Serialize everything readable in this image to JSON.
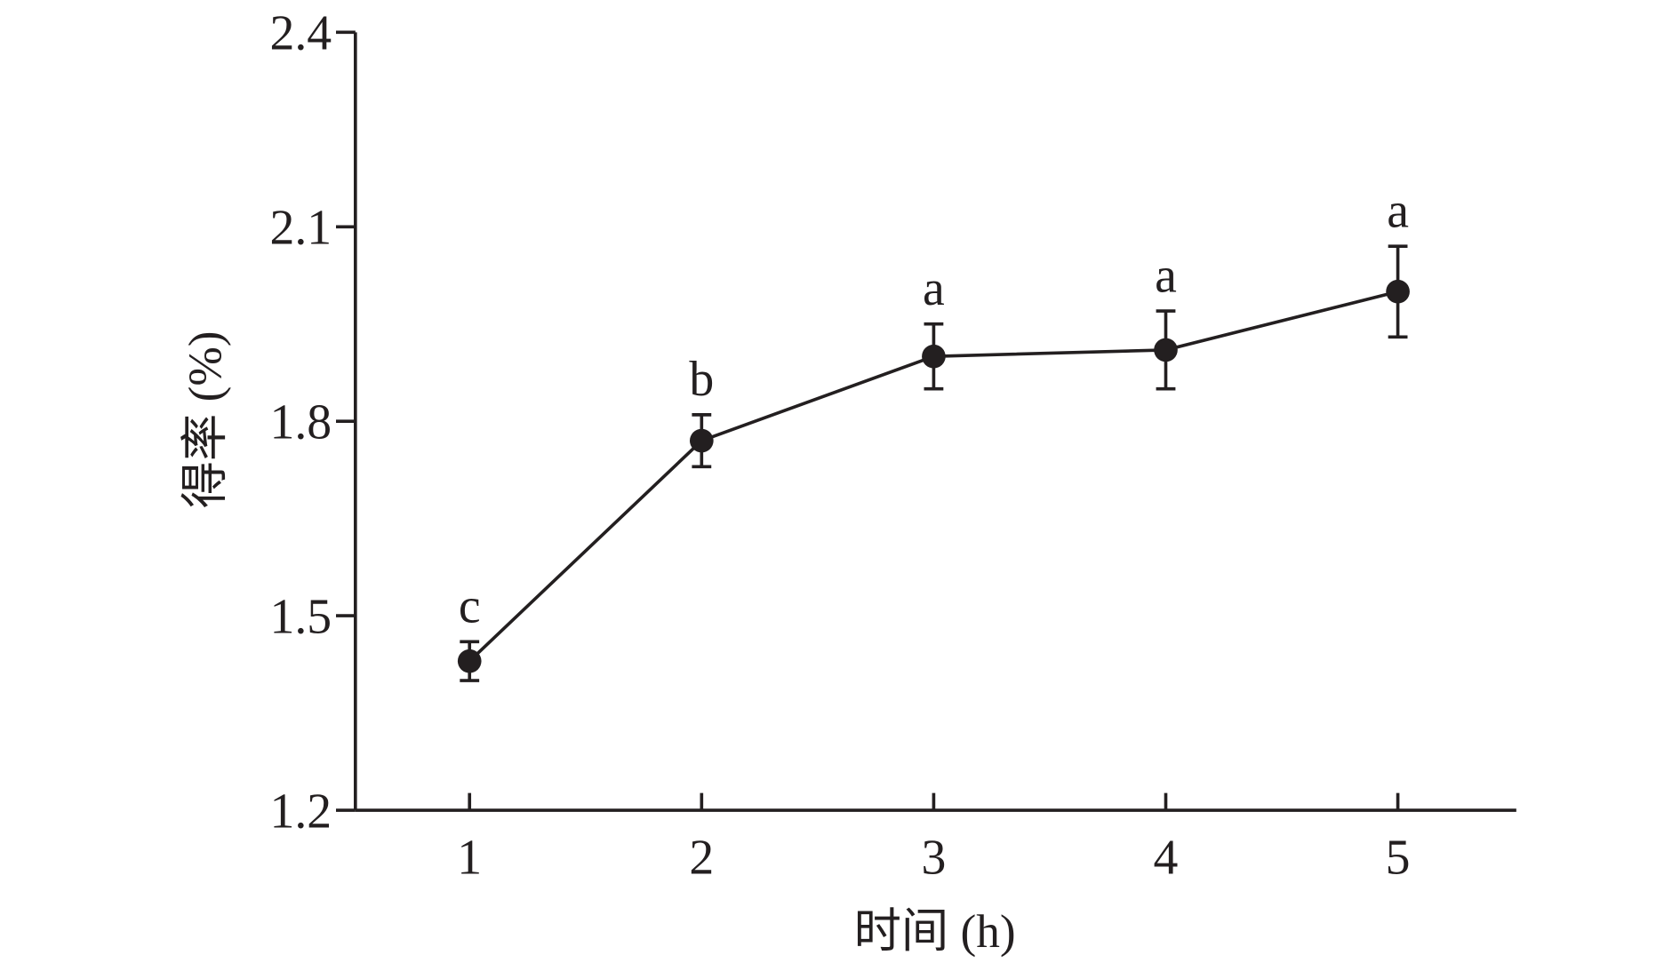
{
  "chart_data": {
    "type": "line",
    "xlabel": "时间 (h)",
    "ylabel": "得率 (%)",
    "x": [
      1,
      2,
      3,
      4,
      5
    ],
    "x_tick_labels": [
      "1",
      "2",
      "3",
      "4",
      "5"
    ],
    "y_tick_labels": [
      "1.2",
      "1.5",
      "1.8",
      "2.1",
      "2.4"
    ],
    "y_ticks": [
      1.2,
      1.5,
      1.8,
      2.1,
      2.4
    ],
    "ylim": [
      1.2,
      2.4
    ],
    "xlim": [
      0.5,
      5.5
    ],
    "grid": false,
    "series": [
      {
        "values": [
          1.43,
          1.77,
          1.9,
          1.91,
          2.0
        ],
        "errors": [
          0.03,
          0.04,
          0.05,
          0.06,
          0.07
        ],
        "significance_labels": [
          "c",
          "b",
          "a",
          "a",
          "a"
        ],
        "color": "#231f20"
      }
    ]
  }
}
